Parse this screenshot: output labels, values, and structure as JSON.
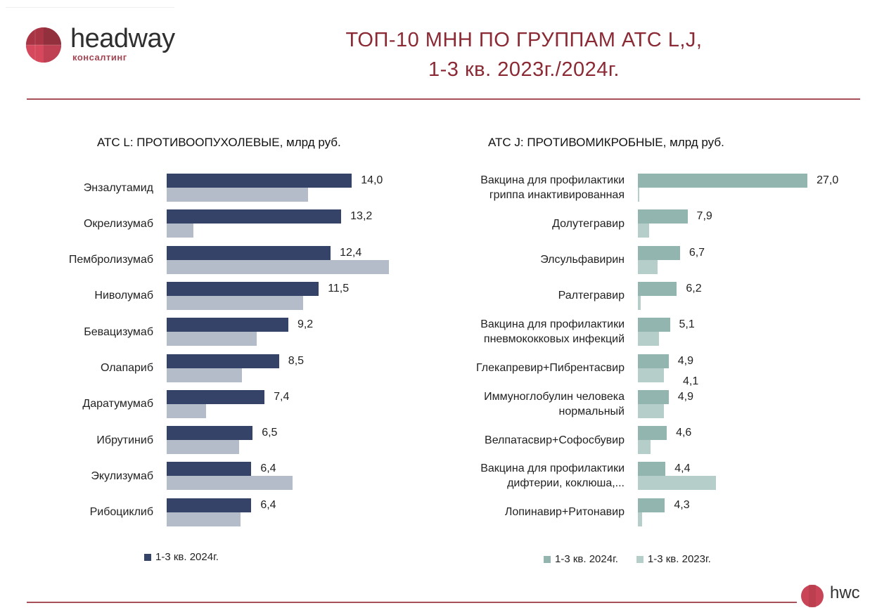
{
  "header": {
    "logo_name": "headway",
    "logo_sub": "консалтинг",
    "title_line1": "ТОП-10 МНН ПО ГРУППАМ АТС L,J,",
    "title_line2": "1-3 кв. 2023г./2024г.",
    "footer_logo": "hwc"
  },
  "colors": {
    "accent": "#8b2a35",
    "l2024": "#364368",
    "l2023": "#b3bcc8",
    "j2024": "#93b5b0",
    "j2023": "#b6cec9"
  },
  "chart_data": [
    {
      "type": "bar",
      "orientation": "horizontal",
      "title": "АТС L: ПРОТИВООПУХОЛЕВЫЕ, млрд руб.",
      "xlim": [
        0,
        17
      ],
      "categories": [
        "Энзалутамид",
        "Окрелизумаб",
        "Пембролизумаб",
        "Ниволумаб",
        "Бевацизумаб",
        "Олапариб",
        "Даратумумаб",
        "Ибрутиниб",
        "Экулизумаб",
        "Рибоциклиб"
      ],
      "series": [
        {
          "name": "1-3 кв. 2024г.",
          "values": [
            14.0,
            13.2,
            12.4,
            11.5,
            9.2,
            8.5,
            7.4,
            6.5,
            6.4,
            6.4
          ],
          "labels": [
            "14,0",
            "13,2",
            "12,4",
            "11,5",
            "9,2",
            "8,5",
            "7,4",
            "6,5",
            "6,4",
            "6,4"
          ]
        },
        {
          "name": "1-3 кв. 2023г.",
          "values": [
            10.7,
            2.0,
            16.8,
            10.3,
            6.8,
            5.7,
            3.0,
            5.5,
            9.5,
            5.6
          ]
        }
      ],
      "legend": [
        "1-3 кв. 2024г."
      ],
      "legend_position": "bottom"
    },
    {
      "type": "bar",
      "orientation": "horizontal",
      "title": "АТС J: ПРОТИВОМИКРОБНЫЕ, млрд руб.",
      "xlim": [
        0,
        27
      ],
      "categories": [
        "Вакцина для профилактики гриппа инактивированная",
        "Долутегравир",
        "Элсульфавирин",
        "Ралтегравир",
        "Вакцина для профилактики пневмококковых инфекций",
        "Глекапревир+Пибрентасвир",
        "Иммуноглобулин человека нормальный",
        "Велпатасвир+Софосбувир",
        "Вакцина для профилактики дифтерии, коклюша,...",
        "Лопинавир+Ритонавир"
      ],
      "category_lines": [
        [
          "Вакцина для профилактики",
          "гриппа инактивированная"
        ],
        [
          "Долутегравир"
        ],
        [
          "Элсульфавирин"
        ],
        [
          "Ралтегравир"
        ],
        [
          "Вакцина для профилактики",
          "пневмококковых инфекций"
        ],
        [
          "Глекапревир+Пибрентасвир"
        ],
        [
          "Иммуноглобулин человека",
          "нормальный"
        ],
        [
          "Велпатасвир+Софосбувир"
        ],
        [
          "Вакцина для профилактики",
          "дифтерии, коклюша,..."
        ],
        [
          "Лопинавир+Ритонавир"
        ]
      ],
      "series": [
        {
          "name": "1-3 кв. 2024г.",
          "values": [
            27.0,
            7.9,
            6.7,
            6.2,
            5.1,
            4.9,
            4.9,
            4.6,
            4.4,
            4.3
          ],
          "labels": [
            "27,0",
            "7,9",
            "6,7",
            "6,2",
            "5,1",
            "4,9",
            "4,9",
            "4,6",
            "4,4",
            "4,3"
          ]
        },
        {
          "name": "1-3 кв. 2023г.",
          "values": [
            0.2,
            1.8,
            3.1,
            0.4,
            3.4,
            4.1,
            4.1,
            2.0,
            12.4,
            0.7
          ]
        }
      ],
      "annotations": [
        "4,1"
      ],
      "legend": [
        "1-3 кв. 2024г.",
        "1-3 кв. 2023г."
      ],
      "legend_position": "bottom"
    }
  ]
}
